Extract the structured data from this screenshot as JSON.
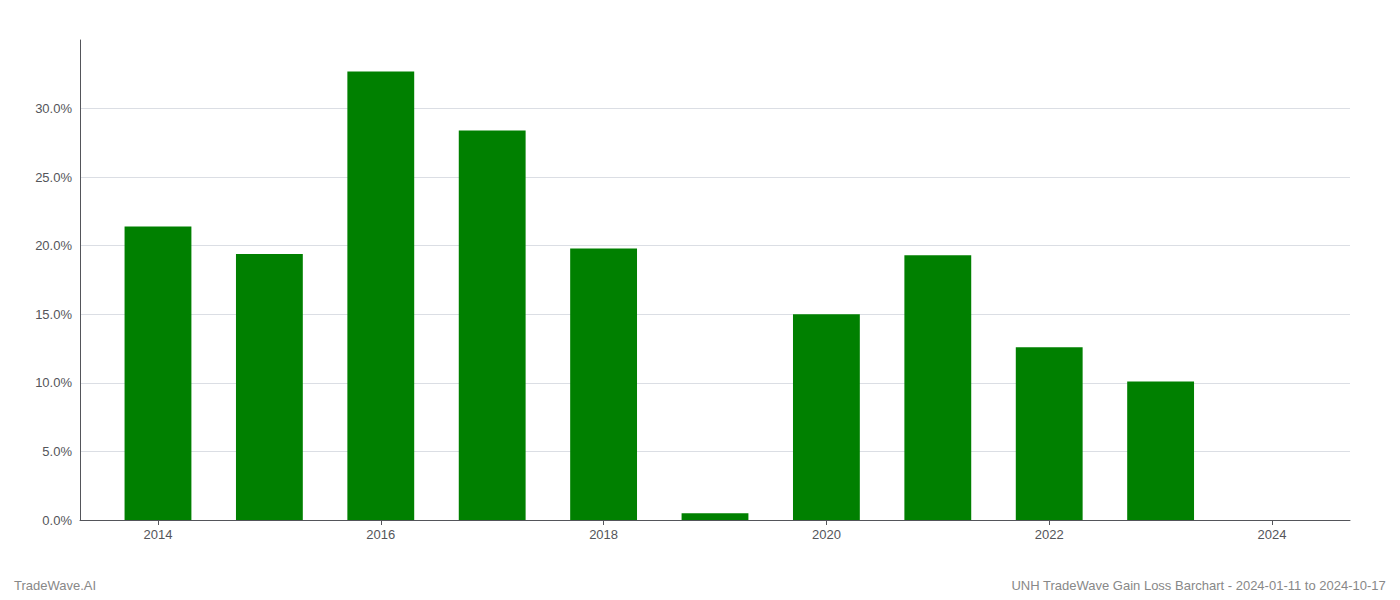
{
  "chart_data": {
    "type": "bar",
    "x": [
      2014,
      2015,
      2016,
      2017,
      2018,
      2019,
      2020,
      2021,
      2022,
      2023
    ],
    "values": [
      0.214,
      0.194,
      0.327,
      0.284,
      0.198,
      0.005,
      0.15,
      0.193,
      0.126,
      0.101
    ],
    "color": "#008000",
    "xlim": [
      2013.3,
      2024.7
    ],
    "xticks": [
      2014,
      2016,
      2018,
      2020,
      2022,
      2024
    ],
    "ylim": [
      0,
      0.35
    ],
    "yticks": [
      {
        "value": 0.0,
        "label": "0.0%"
      },
      {
        "value": 0.05,
        "label": "5.0%"
      },
      {
        "value": 0.1,
        "label": "10.0%"
      },
      {
        "value": 0.15,
        "label": "15.0%"
      },
      {
        "value": 0.2,
        "label": "20.0%"
      },
      {
        "value": 0.25,
        "label": "25.0%"
      },
      {
        "value": 0.3,
        "label": "30.0%"
      }
    ],
    "grid": true,
    "annotations": [
      "TradeWave.AI",
      "UNH TradeWave Gain Loss Barchart - 2024-01-11 to 2024-10-17"
    ]
  }
}
